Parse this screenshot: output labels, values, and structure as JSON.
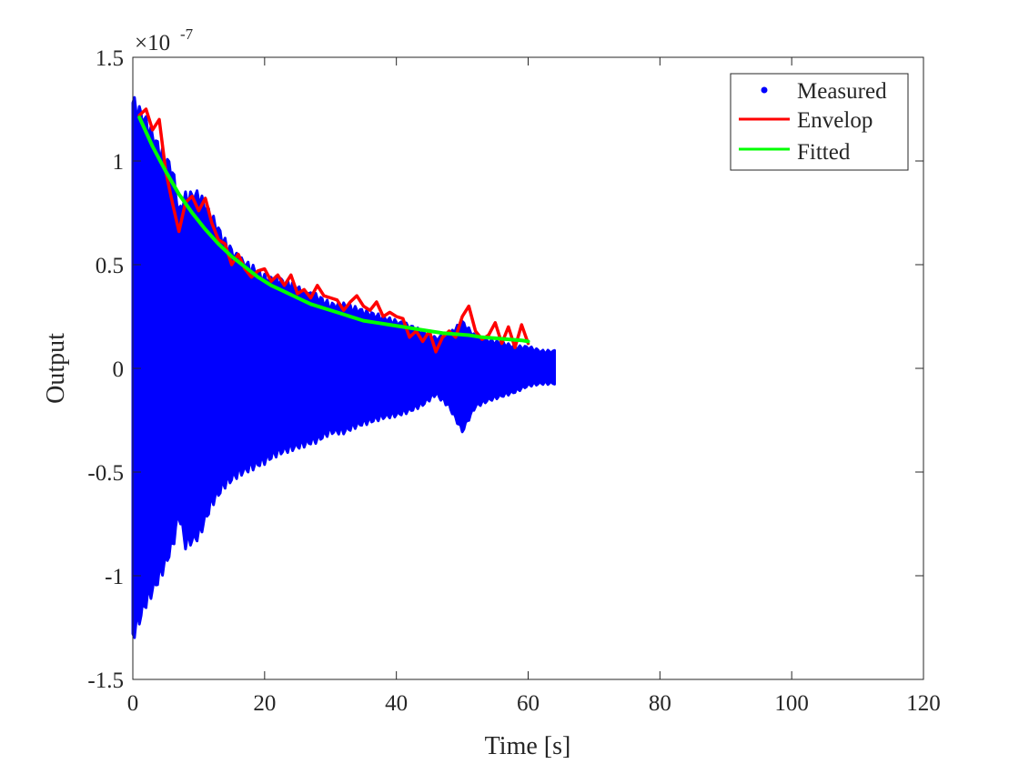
{
  "chart_data": {
    "type": "line",
    "title": "",
    "xlabel": "Time [s]",
    "ylabel": "Output",
    "y_multiplier_label": "×10",
    "y_multiplier_exponent": "-7",
    "xlim": [
      0,
      120
    ],
    "ylim": [
      -1.5,
      1.5
    ],
    "y_scale_factor": 1e-07,
    "x_ticks": [
      0,
      20,
      40,
      60,
      80,
      100,
      120
    ],
    "x_tick_labels": [
      "0",
      "20",
      "40",
      "60",
      "80",
      "100",
      "120"
    ],
    "y_ticks": [
      -1.5,
      -1,
      -0.5,
      0,
      0.5,
      1,
      1.5
    ],
    "y_tick_labels": [
      "-1.5",
      "-1",
      "-0.5",
      "0",
      "0.5",
      "1",
      "1.5"
    ],
    "grid": false,
    "box": true,
    "legend_position": "top-right",
    "series": [
      {
        "name": "Measured",
        "kind": "dots",
        "color": "#0000ff",
        "x": [
          0,
          2,
          4,
          6,
          7,
          8,
          10,
          12,
          14,
          16,
          18,
          20,
          22,
          24,
          26,
          28,
          30,
          32,
          34,
          36,
          38,
          40,
          42,
          44,
          46,
          48,
          50,
          52,
          54,
          56,
          58,
          60,
          62,
          64
        ],
        "upper": [
          1.28,
          1.18,
          1.05,
          0.95,
          0.75,
          0.82,
          0.83,
          0.72,
          0.6,
          0.52,
          0.48,
          0.43,
          0.42,
          0.4,
          0.36,
          0.34,
          0.3,
          0.3,
          0.28,
          0.26,
          0.24,
          0.22,
          0.2,
          0.17,
          0.14,
          0.16,
          0.22,
          0.15,
          0.13,
          0.12,
          0.1,
          0.1,
          0.08,
          0.08
        ],
        "lower": [
          -1.28,
          -1.12,
          -1.0,
          -0.85,
          -0.7,
          -0.84,
          -0.8,
          -0.64,
          -0.55,
          -0.5,
          -0.47,
          -0.44,
          -0.4,
          -0.38,
          -0.36,
          -0.34,
          -0.3,
          -0.3,
          -0.27,
          -0.25,
          -0.23,
          -0.22,
          -0.2,
          -0.17,
          -0.12,
          -0.18,
          -0.3,
          -0.18,
          -0.15,
          -0.13,
          -0.11,
          -0.08,
          -0.07,
          -0.07
        ]
      },
      {
        "name": "Envelop",
        "kind": "line",
        "color": "#ff0000",
        "x": [
          1,
          2,
          3,
          4,
          5,
          6,
          7,
          8,
          9,
          10,
          11,
          12,
          13,
          14,
          15,
          16,
          17,
          18,
          19,
          20,
          21,
          22,
          23,
          24,
          25,
          26,
          27,
          28,
          29,
          30,
          31,
          32,
          33,
          34,
          35,
          36,
          37,
          38,
          39,
          40,
          41,
          42,
          43,
          44,
          45,
          46,
          47,
          48,
          49,
          50,
          51,
          52,
          53,
          54,
          55,
          56,
          57,
          58,
          59,
          60
        ],
        "y": [
          1.22,
          1.25,
          1.15,
          1.2,
          0.95,
          0.8,
          0.66,
          0.8,
          0.83,
          0.76,
          0.82,
          0.7,
          0.62,
          0.6,
          0.5,
          0.55,
          0.48,
          0.44,
          0.47,
          0.48,
          0.42,
          0.45,
          0.4,
          0.45,
          0.36,
          0.38,
          0.34,
          0.4,
          0.35,
          0.34,
          0.33,
          0.28,
          0.32,
          0.35,
          0.3,
          0.28,
          0.32,
          0.25,
          0.27,
          0.25,
          0.24,
          0.15,
          0.18,
          0.13,
          0.18,
          0.08,
          0.15,
          0.18,
          0.15,
          0.25,
          0.3,
          0.18,
          0.14,
          0.16,
          0.22,
          0.12,
          0.2,
          0.1,
          0.21,
          0.12
        ]
      },
      {
        "name": "Fitted",
        "kind": "line",
        "color": "#00ff00",
        "x": [
          1,
          3,
          5,
          7,
          9,
          11,
          13,
          15,
          17,
          19,
          21,
          23,
          25,
          27,
          29,
          31,
          33,
          35,
          37,
          39,
          41,
          43,
          45,
          47,
          49,
          51,
          53,
          55,
          57,
          59,
          60
        ],
        "y": [
          1.21,
          1.07,
          0.95,
          0.84,
          0.75,
          0.67,
          0.6,
          0.54,
          0.49,
          0.44,
          0.4,
          0.37,
          0.34,
          0.31,
          0.29,
          0.27,
          0.25,
          0.23,
          0.22,
          0.21,
          0.2,
          0.19,
          0.18,
          0.17,
          0.165,
          0.16,
          0.15,
          0.145,
          0.14,
          0.135,
          0.13
        ]
      }
    ]
  }
}
